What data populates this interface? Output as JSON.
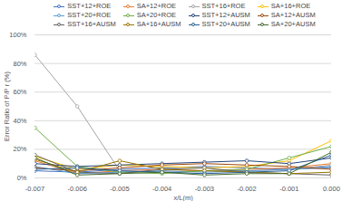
{
  "chart_data": {
    "type": "line",
    "xlabel": "x/L(m)",
    "ylabel": "Error Ratio of P/P r (%)",
    "x": [
      -0.007,
      -0.006,
      -0.005,
      -0.004,
      -0.003,
      -0.002,
      -0.001,
      0
    ],
    "xlim": [
      -0.007,
      0
    ],
    "xticks": [
      -0.007,
      -0.006,
      -0.005,
      -0.004,
      -0.003,
      -0.002,
      -0.001,
      {
        "value": 0,
        "label": "0.000"
      }
    ],
    "ylim": [
      0,
      100
    ],
    "yticks": [
      {
        "value": 0,
        "label": "0%"
      },
      {
        "value": 20,
        "label": "20%"
      },
      {
        "value": 40,
        "label": "40%"
      },
      {
        "value": 60,
        "label": "60%"
      },
      {
        "value": 80,
        "label": "80%"
      },
      {
        "value": 100,
        "label": "100%"
      }
    ],
    "grid": true,
    "legend": "top",
    "marker": "circle",
    "series": [
      {
        "name": "SST+12+ROE",
        "color": "#4472c4",
        "values": [
          5,
          4,
          6,
          7,
          8,
          7,
          6,
          8
        ]
      },
      {
        "name": "SA+12+ROE",
        "color": "#ed7d31",
        "values": [
          12,
          3,
          5,
          6,
          5,
          6,
          7,
          10
        ]
      },
      {
        "name": "SST+16+ROE",
        "color": "#a5a5a5",
        "values": [
          86,
          50,
          5,
          4,
          5,
          5,
          6,
          9
        ]
      },
      {
        "name": "SA+16+ROE",
        "color": "#ffc000",
        "values": [
          15,
          6,
          9,
          8,
          7,
          8,
          12,
          26
        ]
      },
      {
        "name": "SST+20+ROE",
        "color": "#5b9bd5",
        "values": [
          8,
          3,
          4,
          5,
          4,
          5,
          6,
          7
        ]
      },
      {
        "name": "SA+20+ROE",
        "color": "#70ad47",
        "values": [
          35,
          8,
          4,
          3,
          5,
          6,
          14,
          22
        ]
      },
      {
        "name": "SST+12+AUSM",
        "color": "#264478",
        "values": [
          10,
          8,
          9,
          10,
          11,
          12,
          10,
          14
        ]
      },
      {
        "name": "SA+12+AUSM",
        "color": "#9e480e",
        "values": [
          7,
          5,
          7,
          9,
          10,
          9,
          8,
          6
        ]
      },
      {
        "name": "SST+16+AUSM",
        "color": "#636363",
        "values": [
          16,
          4,
          3,
          6,
          7,
          4,
          3,
          2
        ]
      },
      {
        "name": "SA+16+AUSM",
        "color": "#997300",
        "values": [
          13,
          4,
          12,
          6,
          5,
          4,
          3,
          4
        ]
      },
      {
        "name": "SST+20+AUSM",
        "color": "#255e91",
        "values": [
          6,
          7,
          5,
          4,
          3,
          4,
          5,
          16
        ]
      },
      {
        "name": "SA+20+AUSM",
        "color": "#43682b",
        "values": [
          14,
          2,
          3,
          4,
          2,
          3,
          3,
          18
        ]
      }
    ]
  }
}
